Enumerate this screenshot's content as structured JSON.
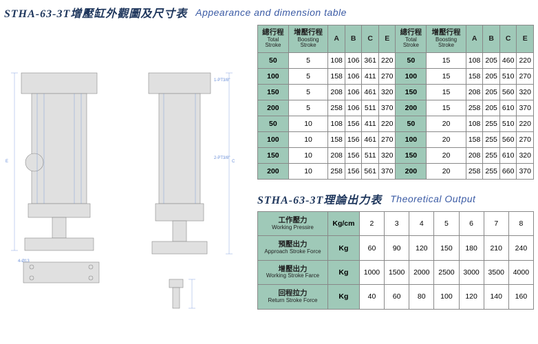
{
  "header1": {
    "cn": "STHA-63-3T增壓缸外觀圖及尺寸表",
    "en": "Appearance and dimension table"
  },
  "header2": {
    "cn": "STHA-63-3T理論出力表",
    "en": "Theoretical Output"
  },
  "dim_table": {
    "cols": [
      {
        "main": "總行程",
        "sub": "Total Stroke"
      },
      {
        "main": "增壓行程",
        "sub": "Boosting Stroke"
      },
      {
        "main": "A",
        "sub": ""
      },
      {
        "main": "B",
        "sub": ""
      },
      {
        "main": "C",
        "sub": ""
      },
      {
        "main": "E",
        "sub": ""
      },
      {
        "main": "總行程",
        "sub": "Total Stroke"
      },
      {
        "main": "增壓行程",
        "sub": "Boosting Stroke"
      },
      {
        "main": "A",
        "sub": ""
      },
      {
        "main": "B",
        "sub": ""
      },
      {
        "main": "C",
        "sub": ""
      },
      {
        "main": "E",
        "sub": ""
      }
    ],
    "rows": [
      [
        "50",
        "5",
        "108",
        "106",
        "361",
        "220",
        "50",
        "15",
        "108",
        "205",
        "460",
        "220"
      ],
      [
        "100",
        "5",
        "158",
        "106",
        "411",
        "270",
        "100",
        "15",
        "158",
        "205",
        "510",
        "270"
      ],
      [
        "150",
        "5",
        "208",
        "106",
        "461",
        "320",
        "150",
        "15",
        "208",
        "205",
        "560",
        "320"
      ],
      [
        "200",
        "5",
        "258",
        "106",
        "511",
        "370",
        "200",
        "15",
        "258",
        "205",
        "610",
        "370"
      ],
      [
        "50",
        "10",
        "108",
        "156",
        "411",
        "220",
        "50",
        "20",
        "108",
        "255",
        "510",
        "220"
      ],
      [
        "100",
        "10",
        "158",
        "156",
        "461",
        "270",
        "100",
        "20",
        "158",
        "255",
        "560",
        "270"
      ],
      [
        "150",
        "10",
        "208",
        "156",
        "511",
        "320",
        "150",
        "20",
        "208",
        "255",
        "610",
        "320"
      ],
      [
        "200",
        "10",
        "258",
        "156",
        "561",
        "370",
        "200",
        "20",
        "258",
        "255",
        "660",
        "370"
      ]
    ],
    "shade_cols": [
      0,
      6
    ],
    "colors": {
      "header_bg": "#9fc9b8",
      "border": "#888"
    }
  },
  "out_table": {
    "rows": [
      {
        "label_cn": "工作壓力",
        "label_en": "Working Pressire",
        "unit": "Kg/cm",
        "vals": [
          "2",
          "3",
          "4",
          "5",
          "6",
          "7",
          "8"
        ]
      },
      {
        "label_cn": "預壓出力",
        "label_en": "Approach Stroke Force",
        "unit": "Kg",
        "vals": [
          "60",
          "90",
          "120",
          "150",
          "180",
          "210",
          "240"
        ]
      },
      {
        "label_cn": "增壓出力",
        "label_en": "Working Stroke Farce",
        "unit": "Kg",
        "vals": [
          "1000",
          "1500",
          "2000",
          "2500",
          "3000",
          "3500",
          "4000"
        ]
      },
      {
        "label_cn": "回程拉力",
        "label_en": "Return Stroke Force",
        "unit": "Kg",
        "vals": [
          "40",
          "60",
          "80",
          "100",
          "120",
          "140",
          "160"
        ]
      }
    ]
  },
  "drawing_labels": {
    "port1": "1-PT3/8\"",
    "port2": "2-PT3/8\"",
    "mount": "4-Ø13",
    "dimA": "A",
    "dimB": "B",
    "dimC": "C",
    "dimE": "E"
  }
}
